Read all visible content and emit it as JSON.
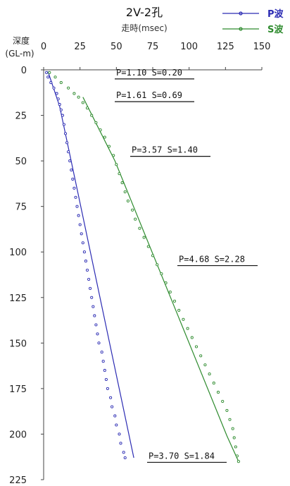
{
  "chart_data": {
    "type": "line",
    "title": "2V-2孔",
    "xlabel": "走時(msec)",
    "ylabel_line1": "深度",
    "ylabel_line2": "(GL-m)",
    "xlim": [
      0,
      150
    ],
    "ylim": [
      0,
      225
    ],
    "x_ticks": [
      0,
      25,
      50,
      75,
      100,
      125,
      150
    ],
    "y_ticks": [
      0,
      25,
      50,
      75,
      100,
      125,
      150,
      175,
      200,
      225
    ],
    "x_axis_position": "top",
    "y_axis_inverted": true,
    "grid": false,
    "legend_position": "top-right",
    "series": [
      {
        "name": "P波",
        "color": "#2b2bb3",
        "observed_points": [
          [
            2,
            1.5
          ],
          [
            3,
            4
          ],
          [
            5,
            7
          ],
          [
            7,
            10
          ],
          [
            9,
            13
          ],
          [
            10,
            16
          ],
          [
            11,
            19
          ],
          [
            12,
            22
          ],
          [
            13,
            25
          ],
          [
            14,
            30
          ],
          [
            15,
            35
          ],
          [
            16,
            40
          ],
          [
            17,
            45
          ],
          [
            18,
            50
          ],
          [
            19,
            55
          ],
          [
            20,
            60
          ],
          [
            21,
            65
          ],
          [
            22,
            70
          ],
          [
            23,
            75
          ],
          [
            24,
            80
          ],
          [
            25,
            85
          ],
          [
            26,
            90
          ],
          [
            27,
            95
          ],
          [
            28,
            100
          ],
          [
            29,
            105
          ],
          [
            30,
            110
          ],
          [
            31,
            115
          ],
          [
            32,
            120
          ],
          [
            33,
            125
          ],
          [
            34,
            130
          ],
          [
            35,
            135
          ],
          [
            36,
            140
          ],
          [
            37,
            145
          ],
          [
            38,
            150
          ],
          [
            40,
            155
          ],
          [
            41,
            160
          ],
          [
            42,
            165
          ],
          [
            43,
            170
          ],
          [
            44,
            175
          ],
          [
            46,
            180
          ],
          [
            47,
            185
          ],
          [
            49,
            190
          ],
          [
            50,
            195
          ],
          [
            52,
            200
          ],
          [
            53,
            205
          ],
          [
            55,
            210
          ],
          [
            56,
            213
          ]
        ],
        "fit_line": [
          [
            3,
            1
          ],
          [
            11,
            20
          ],
          [
            62,
            213
          ]
        ]
      },
      {
        "name": "S波",
        "color": "#2e8b2e",
        "observed_points": [
          [
            4,
            1.5
          ],
          [
            8,
            4
          ],
          [
            12,
            7
          ],
          [
            17,
            10
          ],
          [
            21,
            13
          ],
          [
            24,
            15
          ],
          [
            27,
            18
          ],
          [
            30,
            21
          ],
          [
            33,
            25
          ],
          [
            36,
            29
          ],
          [
            39,
            33
          ],
          [
            42,
            37
          ],
          [
            45,
            42
          ],
          [
            48,
            47
          ],
          [
            50,
            52
          ],
          [
            52,
            57
          ],
          [
            54,
            62
          ],
          [
            56,
            67
          ],
          [
            58,
            72
          ],
          [
            61,
            77
          ],
          [
            63,
            82
          ],
          [
            66,
            87
          ],
          [
            69,
            92
          ],
          [
            72,
            97
          ],
          [
            75,
            102
          ],
          [
            78,
            107
          ],
          [
            81,
            112
          ],
          [
            84,
            117
          ],
          [
            87,
            122
          ],
          [
            90,
            127
          ],
          [
            93,
            132
          ],
          [
            96,
            137
          ],
          [
            99,
            142
          ],
          [
            102,
            147
          ],
          [
            105,
            152
          ],
          [
            108,
            157
          ],
          [
            111,
            162
          ],
          [
            114,
            167
          ],
          [
            117,
            172
          ],
          [
            120,
            177
          ],
          [
            123,
            182
          ],
          [
            126,
            187
          ],
          [
            128,
            192
          ],
          [
            130,
            197
          ],
          [
            131,
            202
          ],
          [
            132,
            207
          ],
          [
            133,
            212
          ],
          [
            134,
            215
          ]
        ],
        "fit_line": [
          [
            27,
            15
          ],
          [
            49,
            50
          ],
          [
            126,
            201
          ],
          [
            134,
            215
          ]
        ]
      }
    ],
    "annotations": [
      {
        "text": "P=1.10 S=0.20",
        "depth": 1.5
      },
      {
        "text": "P=1.61 S=0.69",
        "depth": 14
      },
      {
        "text": "P=3.57 S=1.40",
        "depth": 44
      },
      {
        "text": "P=4.68 S=2.28",
        "depth": 104
      },
      {
        "text": "P=3.70 S=1.84",
        "depth": 212
      }
    ]
  }
}
